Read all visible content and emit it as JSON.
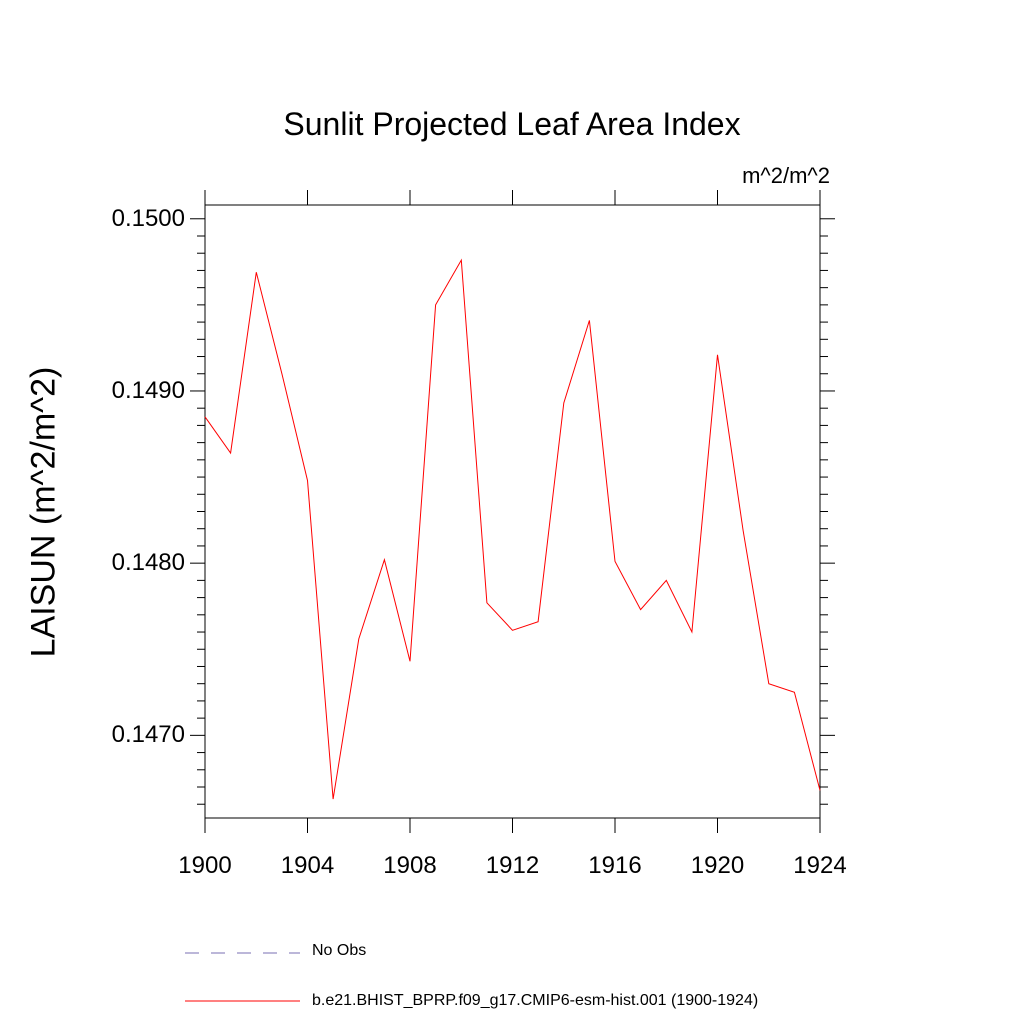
{
  "chart_data": {
    "type": "line",
    "title": "Sunlit Projected Leaf Area Index",
    "units_label": "m^2/m^2",
    "ylabel": "LAISUN  (m^2/m^2)",
    "xlabel": "",
    "xlim": [
      1900,
      1924
    ],
    "ylim": [
      0.14652,
      0.15008
    ],
    "x_ticks": [
      1900,
      1904,
      1908,
      1912,
      1916,
      1920,
      1924
    ],
    "x_tick_labels": [
      "1900",
      "1904",
      "1908",
      "1912",
      "1916",
      "1920",
      "1924"
    ],
    "y_ticks": [
      0.147,
      0.148,
      0.149,
      0.15
    ],
    "y_tick_labels": [
      "0.1470",
      "0.1480",
      "0.1490",
      "0.1500"
    ],
    "series": [
      {
        "name": "b.e21.BHIST_BPRP.f09_g17.CMIP6-esm-hist.001 (1900-1924)",
        "color": "#ff0000",
        "style": "solid",
        "x": [
          1900,
          1901,
          1902,
          1903,
          1904,
          1905,
          1906,
          1907,
          1908,
          1909,
          1910,
          1911,
          1912,
          1913,
          1914,
          1915,
          1916,
          1917,
          1918,
          1919,
          1920,
          1921,
          1922,
          1923,
          1924
        ],
        "values": [
          0.14885,
          0.14864,
          0.14969,
          0.1491,
          0.14848,
          0.14663,
          0.14756,
          0.14802,
          0.14743,
          0.1495,
          0.14976,
          0.14777,
          0.14761,
          0.14766,
          0.14893,
          0.14941,
          0.14801,
          0.14773,
          0.1479,
          0.1476,
          0.14921,
          0.14819,
          0.1473,
          0.14725,
          0.14668
        ]
      }
    ],
    "legend": [
      {
        "label": "No Obs",
        "color": "#7a6fb3",
        "style": "dashed"
      },
      {
        "label": "b.e21.BHIST_BPRP.f09_g17.CMIP6-esm-hist.001 (1900-1924)",
        "color": "#ff0000",
        "style": "solid"
      }
    ],
    "legend_position": "bottom-left",
    "grid": false
  }
}
